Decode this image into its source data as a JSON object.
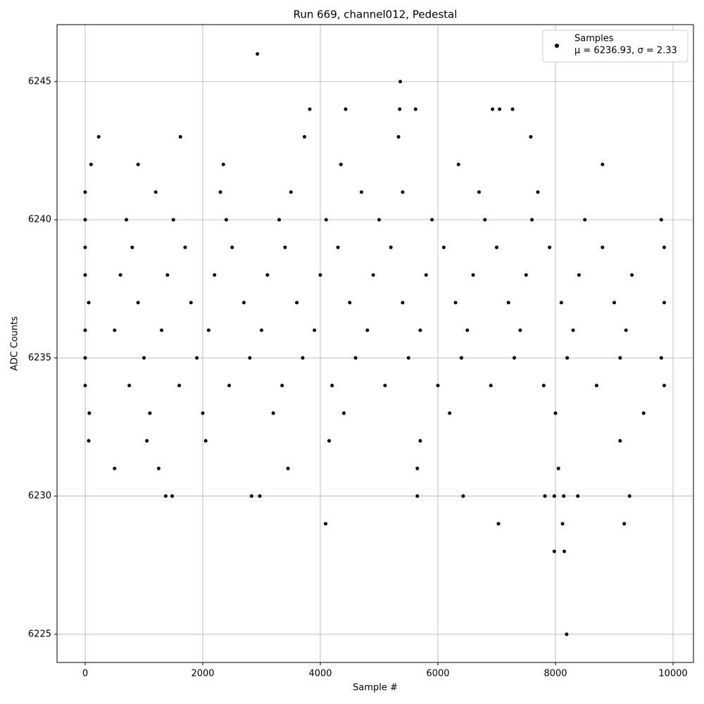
{
  "chart_data": {
    "type": "scatter",
    "title": "Run 669, channel012, Pedestal",
    "x_label": "Sample #",
    "y_label": "ADC Counts",
    "xlim": [
      -479,
      10347
    ],
    "ylim": [
      6223.98,
      6247.06
    ],
    "xticks": [
      0,
      2000,
      4000,
      6000,
      8000,
      10000
    ],
    "yticks": [
      6225,
      6230,
      6235,
      6240,
      6245
    ],
    "grid": true,
    "legend": "upper right",
    "legend_note": "μ = 6236.93, σ = 2.33",
    "series": [
      {
        "name": "Samples",
        "color": "#000000",
        "x": [
          0,
          700,
          1500,
          2400,
          3300,
          4100,
          5000,
          5900,
          6800,
          7600,
          8500,
          9800,
          0,
          800,
          1700,
          2500,
          3400,
          4300,
          5200,
          6100,
          7000,
          7900,
          8800,
          9850,
          0,
          600,
          1400,
          2200,
          3100,
          4000,
          4900,
          5800,
          6600,
          7500,
          8400,
          9300,
          60,
          900,
          1800,
          2700,
          3600,
          4500,
          5400,
          6300,
          7200,
          8100,
          9000,
          9850,
          0,
          500,
          1300,
          2100,
          3000,
          3900,
          4800,
          5700,
          6500,
          7400,
          8300,
          9200,
          0,
          1000,
          1900,
          2800,
          3700,
          4600,
          5500,
          6400,
          7300,
          8200,
          9100,
          9800,
          0,
          750,
          1600,
          2450,
          3350,
          4200,
          5100,
          6000,
          6900,
          7800,
          8700,
          9850,
          70,
          1100,
          2000,
          3200,
          4400,
          6200,
          8000,
          9500,
          0,
          1200,
          2300,
          3500,
          4700,
          5400,
          6700,
          7700,
          60,
          1050,
          2050,
          4150,
          5700,
          9100,
          100,
          900,
          2350,
          4350,
          6350,
          8800,
          500,
          1250,
          3450,
          5650,
          8050,
          230,
          1620,
          3730,
          5330,
          7580,
          2930,
          5360,
          3820,
          4430,
          5350,
          5620,
          6930,
          7050,
          7270,
          1370,
          1480,
          2830,
          2970,
          5650,
          6430,
          7820,
          7980,
          8140,
          8380,
          9260,
          4090,
          7030,
          8120,
          9170,
          7980,
          8150,
          8190
        ],
        "values": [
          6240,
          6240,
          6240,
          6240,
          6240,
          6240,
          6240,
          6240,
          6240,
          6240,
          6240,
          6240,
          6239,
          6239,
          6239,
          6239,
          6239,
          6239,
          6239,
          6239,
          6239,
          6239,
          6239,
          6239,
          6238,
          6238,
          6238,
          6238,
          6238,
          6238,
          6238,
          6238,
          6238,
          6238,
          6238,
          6238,
          6237,
          6237,
          6237,
          6237,
          6237,
          6237,
          6237,
          6237,
          6237,
          6237,
          6237,
          6237,
          6236,
          6236,
          6236,
          6236,
          6236,
          6236,
          6236,
          6236,
          6236,
          6236,
          6236,
          6236,
          6235,
          6235,
          6235,
          6235,
          6235,
          6235,
          6235,
          6235,
          6235,
          6235,
          6235,
          6235,
          6234,
          6234,
          6234,
          6234,
          6234,
          6234,
          6234,
          6234,
          6234,
          6234,
          6234,
          6234,
          6233,
          6233,
          6233,
          6233,
          6233,
          6233,
          6233,
          6233,
          6241,
          6241,
          6241,
          6241,
          6241,
          6241,
          6241,
          6241,
          6232,
          6232,
          6232,
          6232,
          6232,
          6232,
          6242,
          6242,
          6242,
          6242,
          6242,
          6242,
          6231,
          6231,
          6231,
          6231,
          6231,
          6243,
          6243,
          6243,
          6243,
          6243,
          6246,
          6245,
          6244,
          6244,
          6244,
          6244,
          6244,
          6244,
          6244,
          6230,
          6230,
          6230,
          6230,
          6230,
          6230,
          6230,
          6230,
          6230,
          6230,
          6230,
          6229,
          6229,
          6229,
          6229,
          6228,
          6228,
          6225
        ]
      }
    ]
  }
}
